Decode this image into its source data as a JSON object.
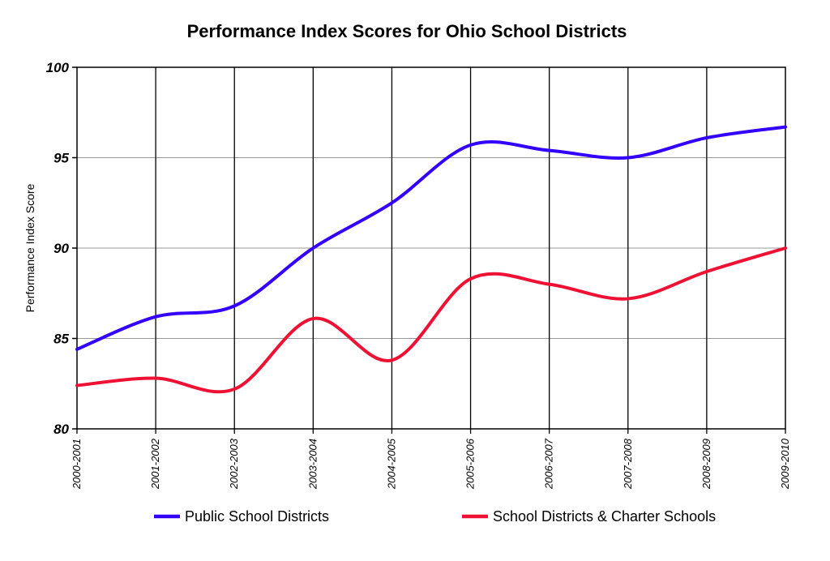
{
  "chart_data": {
    "type": "line",
    "title": "Performance Index Scores for Ohio School Districts",
    "xlabel": "",
    "ylabel": "Performance Index Score",
    "ylim": [
      80,
      100
    ],
    "yticks": [
      "80",
      "85",
      "90",
      "95",
      "100"
    ],
    "categories": [
      "2000-2001",
      "2001-2002",
      "2002-2003",
      "2003-2004",
      "2004-2005",
      "2005-2006",
      "2006-2007",
      "2007-2008",
      "2008-2009",
      "2009-2010"
    ],
    "series": [
      {
        "name": "Public School Districts",
        "color": "#3300ff",
        "values": [
          84.4,
          86.2,
          86.8,
          90.0,
          92.5,
          95.7,
          95.4,
          95.0,
          96.1,
          96.7
        ]
      },
      {
        "name": "School Districts & Charter Schools",
        "color": "#ee1133",
        "values": [
          82.4,
          82.8,
          82.2,
          86.1,
          83.8,
          88.3,
          88.0,
          87.2,
          88.7,
          90.0
        ]
      }
    ],
    "grid": true,
    "legend_position": "bottom"
  }
}
